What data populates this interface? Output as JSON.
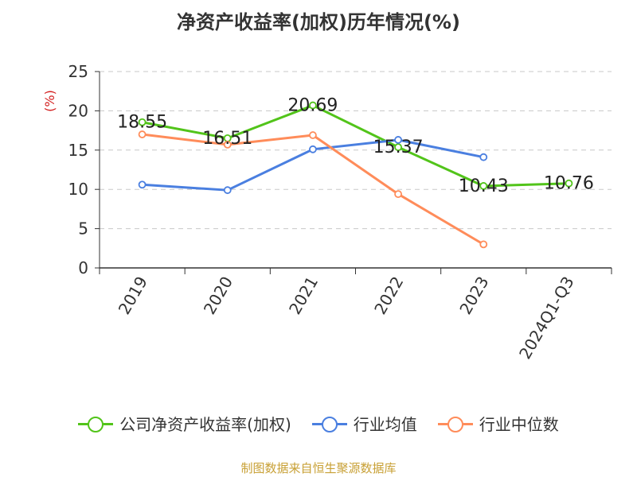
{
  "chart_data": {
    "type": "line",
    "title": "净资产收益率(加权)历年情况(%)",
    "ylabel": "(%)",
    "categories": [
      "2019",
      "2020",
      "2021",
      "2022",
      "2023",
      "2024Q1-Q3"
    ],
    "ylim": [
      0,
      25
    ],
    "yticks": [
      0,
      5,
      10,
      15,
      20,
      25
    ],
    "grid": true,
    "legend_position": "bottom",
    "series": [
      {
        "name": "公司净资产收益率(加权)",
        "color": "#52c41a",
        "values": [
          18.55,
          16.51,
          20.69,
          15.37,
          10.43,
          10.76
        ],
        "labels": [
          "18.55",
          "16.51",
          "20.69",
          "15.37",
          "10.43",
          "10.76"
        ]
      },
      {
        "name": "行业均值",
        "color": "#4a7fe0",
        "values": [
          10.6,
          9.9,
          15.1,
          16.3,
          14.1,
          null
        ]
      },
      {
        "name": "行业中位数",
        "color": "#ff8c5a",
        "values": [
          17.0,
          15.7,
          16.9,
          9.4,
          3.0,
          null
        ]
      }
    ]
  },
  "source": "制图数据来自恒生聚源数据库"
}
